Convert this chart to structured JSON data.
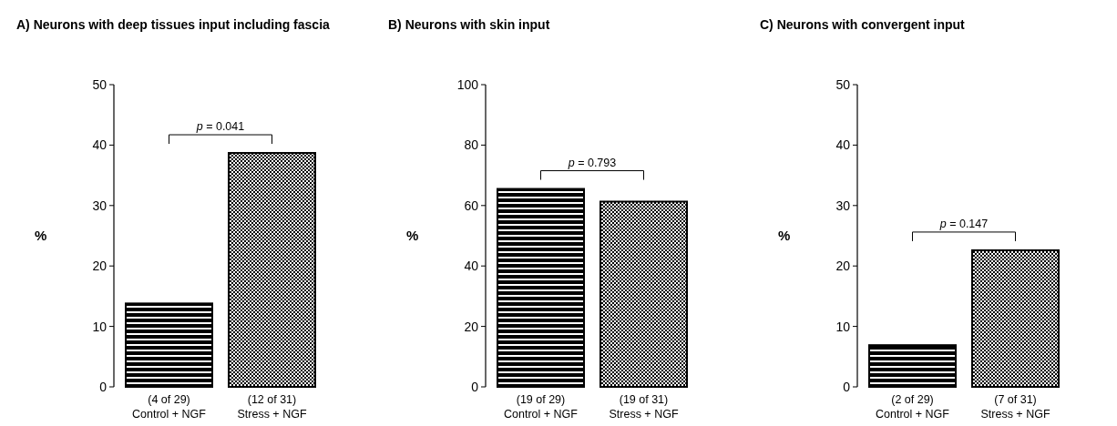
{
  "chart_data": [
    {
      "type": "bar",
      "title": "A) Neurons with deep tissues input including fascia",
      "ylabel": "%",
      "categories": [
        "(4 of 29)\nControl + NGF",
        "(12 of 31)\nStress + NGF"
      ],
      "values": [
        13.8,
        38.7
      ],
      "colors": [
        "#000000",
        "#000000"
      ],
      "ylim": [
        0,
        50
      ],
      "yticks": [
        0,
        10,
        20,
        30,
        40,
        50
      ],
      "annotations": [
        "p = 0.041"
      ]
    },
    {
      "type": "bar",
      "title": "B) Neurons with skin input",
      "ylabel": "%",
      "categories": [
        "(19 of 29)\nControl + NGF",
        "(19 of 31)\nStress + NGF"
      ],
      "values": [
        65.5,
        61.3
      ],
      "colors": [
        "#000000",
        "#000000"
      ],
      "ylim": [
        0,
        100
      ],
      "yticks": [
        0,
        20,
        40,
        60,
        80,
        100
      ],
      "annotations": [
        "p = 0.793"
      ]
    },
    {
      "type": "bar",
      "title": "C) Neurons with convergent input",
      "ylabel": "%",
      "categories": [
        "(2 of 29)\nControl + NGF",
        "(7 of 31)\nStress + NGF"
      ],
      "values": [
        6.9,
        22.6
      ],
      "colors": [
        "#000000",
        "#000000"
      ],
      "ylim": [
        0,
        50
      ],
      "yticks": [
        0,
        10,
        20,
        30,
        40,
        50
      ],
      "annotations": [
        "p = 0.147"
      ]
    }
  ]
}
